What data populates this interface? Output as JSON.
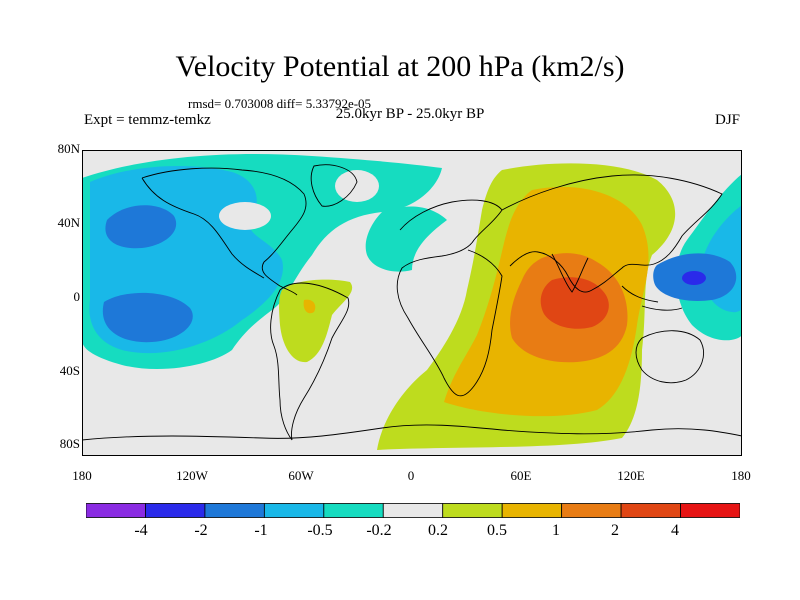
{
  "title": "Velocity Potential at 200 hPa (km2/s)",
  "stats_line": "rmsd= 0.703008 diff= 5.33792e-05",
  "period_line": "25.0kyr BP - 25.0kyr BP",
  "experiment": "Expt = temmz-temkz",
  "season": "DJF",
  "y_ticks": [
    "80N",
    "40N",
    "0",
    "40S",
    "80S"
  ],
  "x_ticks": [
    "180",
    "120W",
    "60W",
    "0",
    "60E",
    "120E",
    "180"
  ],
  "colorbar": {
    "labels": [
      "-4",
      "-2",
      "-1",
      "-0.5",
      "-0.2",
      "0.2",
      "0.5",
      "1",
      "2",
      "4"
    ],
    "colors": [
      "#8a2be2",
      "#2a2aea",
      "#1e78d8",
      "#19b8e8",
      "#16dcc0",
      "#e8e8e8",
      "#bedc1e",
      "#e8b400",
      "#e87c14",
      "#e04614",
      "#e61414"
    ]
  },
  "palette": {
    "neutral": "#e8e8e8",
    "teal": "#16dcc0",
    "light_blue": "#19b8e8",
    "blue": "#1e78d8",
    "dark_blue": "#2a2aea",
    "yellow_green": "#bedc1e",
    "yellow": "#e8b400",
    "orange": "#e87c14",
    "red_orange": "#e04614"
  }
}
